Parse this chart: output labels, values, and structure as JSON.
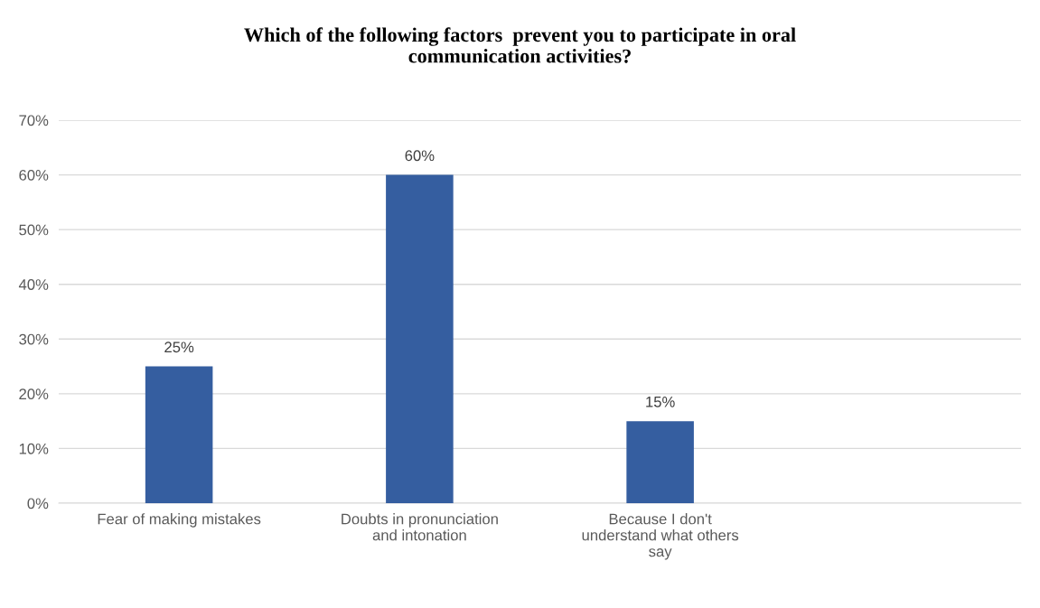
{
  "chart_data": {
    "type": "bar",
    "title": "Which of the following factors  prevent you to participate in oral communication activities?",
    "categories": [
      "Fear of making mistakes",
      "Doubts in pronunciation and intonation",
      "Because I don't understand what others say",
      null
    ],
    "values": [
      25,
      60,
      15,
      null
    ],
    "color": "#355ea0",
    "value_labels": [
      "25%",
      "60%",
      "15%",
      null
    ],
    "ylim": [
      0,
      70
    ],
    "yticks": [
      {
        "value": 0,
        "label": "0%"
      },
      {
        "value": 10,
        "label": "10%"
      },
      {
        "value": 20,
        "label": "20%"
      },
      {
        "value": 30,
        "label": "30%"
      },
      {
        "value": 40,
        "label": "40%"
      },
      {
        "value": 50,
        "label": "50%"
      },
      {
        "value": 60,
        "label": "60%"
      },
      {
        "value": 70,
        "label": "70%"
      }
    ],
    "grid": "y",
    "legend": false
  }
}
